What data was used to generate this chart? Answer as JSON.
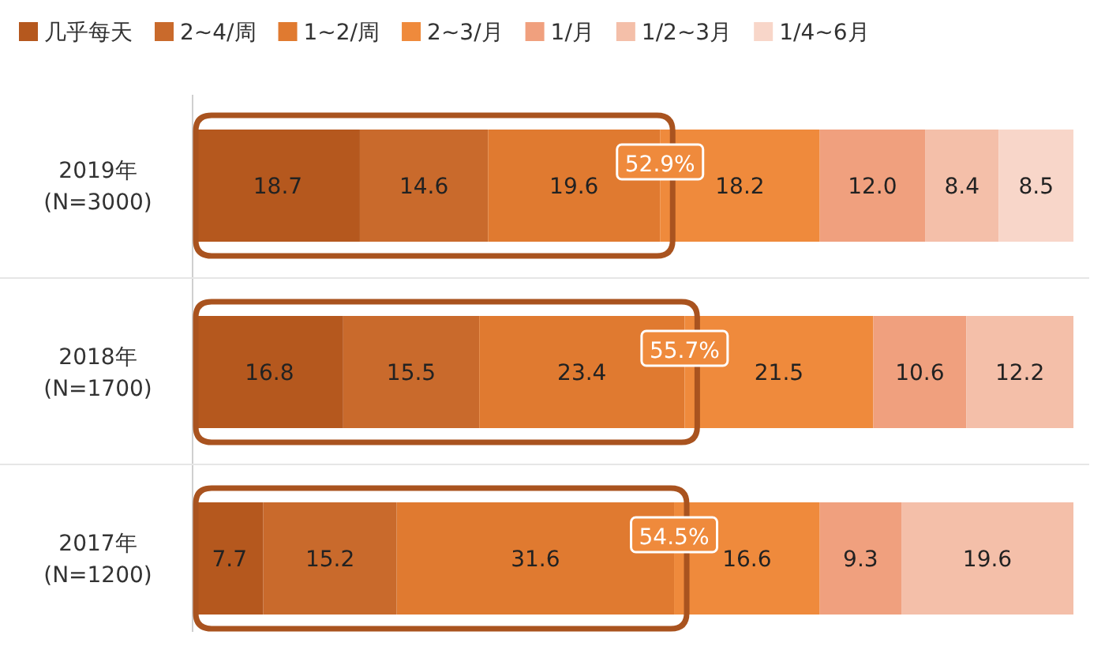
{
  "chart_data": {
    "type": "bar",
    "orientation": "horizontal",
    "stacked": true,
    "legend": "top",
    "tick_labels": "y",
    "xlim": [
      0,
      100
    ],
    "categories": [
      "2019年\n(N=3000)",
      "2018年\n(N=1700)",
      "2017年\n(N=1200)"
    ],
    "series": [
      {
        "name": "几乎每天",
        "color": "#b5581e",
        "values": [
          18.7,
          16.8,
          7.7
        ],
        "value_labels": [
          "18.7",
          "16.8",
          "7.7"
        ]
      },
      {
        "name": "2~4/周",
        "color": "#c96a2c",
        "values": [
          14.6,
          15.5,
          15.2
        ],
        "value_labels": [
          "14.6",
          "15.5",
          "15.2"
        ]
      },
      {
        "name": "1~2/周",
        "color": "#e07a30",
        "values": [
          19.6,
          23.4,
          31.6
        ],
        "value_labels": [
          "19.6",
          "23.4",
          "31.6"
        ]
      },
      {
        "name": "2~3/月",
        "color": "#ef8a3c",
        "values": [
          18.2,
          21.5,
          16.6
        ],
        "value_labels": [
          "18.2",
          "21.5",
          "16.6"
        ]
      },
      {
        "name": "1/月",
        "color": "#f0a07e",
        "values": [
          12.0,
          10.6,
          9.3
        ],
        "value_labels": [
          "12.0",
          "10.6",
          "9.3"
        ]
      },
      {
        "name": "1/2~3月",
        "color": "#f4bfa9",
        "values": [
          8.4,
          12.2,
          19.6
        ],
        "value_labels": [
          "8.4",
          "12.2",
          "19.6"
        ]
      },
      {
        "name": "1/4~6月",
        "color": "#f8d6c9",
        "values": [
          8.5,
          null,
          null
        ],
        "value_labels": [
          "8.5",
          null,
          null
        ]
      }
    ],
    "annotations": [
      {
        "text": "52.9%",
        "x": 52.9,
        "y": "2019年\n(N=3000)"
      },
      {
        "text": "55.7%",
        "x": 55.7,
        "y": "2018年\n(N=1700)"
      },
      {
        "text": "54.5%",
        "x": 54.5,
        "y": "2017年\n(N=1200)"
      }
    ]
  }
}
